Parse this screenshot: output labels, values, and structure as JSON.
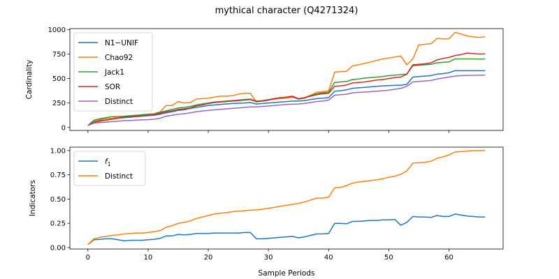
{
  "title": "mythical character (Q4271324)",
  "chart_data": [
    {
      "type": "line",
      "ylabel": "Cardinality",
      "xlabel": "",
      "xlim": [
        -3,
        69
      ],
      "ylim": [
        -30,
        1010
      ],
      "xticks": [
        0,
        10,
        20,
        30,
        40,
        50,
        60
      ],
      "xtick_labels": [
        "",
        "",
        "",
        "",
        "",
        "",
        ""
      ],
      "yticks": [
        0,
        250,
        500,
        750,
        1000
      ],
      "ytick_labels": [
        "0",
        "250",
        "500",
        "750",
        "1000"
      ],
      "legend": "top-left",
      "x": [
        0,
        1,
        2,
        3,
        4,
        5,
        6,
        7,
        8,
        9,
        10,
        11,
        12,
        13,
        14,
        15,
        16,
        17,
        18,
        19,
        20,
        21,
        22,
        23,
        24,
        25,
        26,
        27,
        28,
        29,
        30,
        31,
        32,
        33,
        34,
        35,
        36,
        37,
        38,
        39,
        40,
        41,
        42,
        43,
        44,
        45,
        46,
        47,
        48,
        49,
        50,
        51,
        52,
        53,
        54,
        55,
        56,
        57,
        58,
        59,
        60,
        61,
        62,
        63,
        64,
        65,
        66
      ],
      "series": [
        {
          "name": "N1−UNIF",
          "color": "#1f77b4",
          "values": [
            20,
            60,
            70,
            75,
            85,
            95,
            100,
            105,
            110,
            115,
            120,
            125,
            135,
            150,
            160,
            175,
            180,
            195,
            205,
            215,
            225,
            230,
            235,
            240,
            245,
            248,
            250,
            255,
            240,
            245,
            250,
            255,
            260,
            265,
            270,
            270,
            275,
            285,
            295,
            300,
            305,
            370,
            375,
            385,
            400,
            405,
            410,
            415,
            420,
            425,
            428,
            430,
            432,
            440,
            515,
            520,
            525,
            530,
            545,
            550,
            560,
            580,
            580,
            580,
            580,
            580,
            580
          ]
        },
        {
          "name": "Chao92",
          "color": "#ff7f0e",
          "values": [
            20,
            65,
            80,
            90,
            95,
            105,
            110,
            115,
            120,
            125,
            135,
            140,
            160,
            225,
            225,
            265,
            250,
            255,
            290,
            295,
            300,
            310,
            320,
            320,
            325,
            340,
            350,
            350,
            260,
            270,
            280,
            290,
            295,
            300,
            310,
            290,
            305,
            330,
            360,
            365,
            375,
            565,
            570,
            575,
            630,
            640,
            655,
            670,
            685,
            700,
            710,
            720,
            730,
            640,
            700,
            845,
            850,
            855,
            910,
            905,
            905,
            970,
            955,
            935,
            925,
            920,
            925
          ]
        },
        {
          "name": "Jack1",
          "color": "#2ca02c",
          "values": [
            20,
            75,
            90,
            100,
            110,
            110,
            115,
            120,
            125,
            130,
            135,
            140,
            155,
            170,
            185,
            200,
            205,
            215,
            230,
            240,
            250,
            260,
            265,
            270,
            275,
            280,
            285,
            290,
            270,
            275,
            285,
            295,
            305,
            310,
            315,
            290,
            300,
            325,
            345,
            355,
            360,
            460,
            465,
            470,
            490,
            495,
            505,
            510,
            515,
            520,
            530,
            535,
            540,
            545,
            630,
            635,
            640,
            645,
            660,
            665,
            670,
            700,
            700,
            700,
            700,
            698,
            700
          ]
        },
        {
          "name": "SOR",
          "color": "#d62728",
          "values": [
            20,
            55,
            65,
            75,
            85,
            95,
            105,
            110,
            115,
            120,
            125,
            130,
            145,
            160,
            170,
            185,
            190,
            200,
            220,
            230,
            245,
            255,
            260,
            265,
            270,
            275,
            280,
            285,
            265,
            270,
            280,
            295,
            305,
            310,
            320,
            295,
            305,
            320,
            335,
            345,
            350,
            420,
            425,
            435,
            455,
            460,
            465,
            475,
            485,
            490,
            500,
            510,
            515,
            545,
            640,
            645,
            650,
            660,
            690,
            705,
            715,
            735,
            745,
            760,
            755,
            750,
            752
          ]
        },
        {
          "name": "Distinct",
          "color": "#9467bd",
          "values": [
            20,
            45,
            50,
            55,
            60,
            65,
            70,
            72,
            75,
            78,
            80,
            85,
            95,
            115,
            125,
            135,
            140,
            150,
            160,
            168,
            175,
            180,
            185,
            190,
            195,
            200,
            205,
            210,
            210,
            215,
            220,
            225,
            230,
            235,
            238,
            240,
            245,
            255,
            265,
            270,
            280,
            330,
            335,
            340,
            355,
            358,
            362,
            366,
            370,
            375,
            382,
            390,
            400,
            420,
            465,
            470,
            475,
            480,
            495,
            505,
            515,
            525,
            530,
            532,
            533,
            535,
            535
          ]
        }
      ]
    },
    {
      "type": "line",
      "ylabel": "Indicators",
      "xlabel": "Sample Periods",
      "xlim": [
        -3,
        69
      ],
      "ylim": [
        -0.015,
        1.035
      ],
      "xticks": [
        0,
        10,
        20,
        30,
        40,
        50,
        60
      ],
      "xtick_labels": [
        "0",
        "10",
        "20",
        "30",
        "40",
        "50",
        "60"
      ],
      "yticks": [
        0,
        0.25,
        0.5,
        0.75,
        1.0
      ],
      "ytick_labels": [
        "0.00",
        "0.25",
        "0.50",
        "0.75",
        "1.00"
      ],
      "legend": "top-left",
      "x": [
        0,
        1,
        2,
        3,
        4,
        5,
        6,
        7,
        8,
        9,
        10,
        11,
        12,
        13,
        14,
        15,
        16,
        17,
        18,
        19,
        20,
        21,
        22,
        23,
        24,
        25,
        26,
        27,
        28,
        29,
        30,
        31,
        32,
        33,
        34,
        35,
        36,
        37,
        38,
        39,
        40,
        41,
        42,
        43,
        44,
        45,
        46,
        47,
        48,
        49,
        50,
        51,
        52,
        53,
        54,
        55,
        56,
        57,
        58,
        59,
        60,
        61,
        62,
        63,
        64,
        65,
        66
      ],
      "series": [
        {
          "name": "f1",
          "name_main": "f",
          "name_sub": "1",
          "color": "#1f77b4",
          "values": [
            0.03,
            0.08,
            0.085,
            0.09,
            0.09,
            0.08,
            0.07,
            0.075,
            0.075,
            0.075,
            0.08,
            0.085,
            0.095,
            0.12,
            0.12,
            0.135,
            0.13,
            0.135,
            0.145,
            0.145,
            0.145,
            0.15,
            0.15,
            0.15,
            0.15,
            0.15,
            0.155,
            0.155,
            0.09,
            0.09,
            0.095,
            0.1,
            0.105,
            0.11,
            0.115,
            0.1,
            0.11,
            0.125,
            0.14,
            0.14,
            0.145,
            0.25,
            0.25,
            0.245,
            0.27,
            0.27,
            0.275,
            0.28,
            0.28,
            0.285,
            0.285,
            0.29,
            0.23,
            0.26,
            0.32,
            0.315,
            0.315,
            0.31,
            0.33,
            0.32,
            0.32,
            0.345,
            0.335,
            0.325,
            0.32,
            0.315,
            0.315
          ]
        },
        {
          "name": "Distinct",
          "color": "#ff7f0e",
          "values": [
            0.03,
            0.09,
            0.105,
            0.115,
            0.125,
            0.13,
            0.14,
            0.145,
            0.15,
            0.15,
            0.155,
            0.165,
            0.175,
            0.21,
            0.225,
            0.25,
            0.26,
            0.275,
            0.3,
            0.315,
            0.33,
            0.345,
            0.355,
            0.36,
            0.37,
            0.375,
            0.38,
            0.385,
            0.39,
            0.395,
            0.405,
            0.415,
            0.425,
            0.435,
            0.445,
            0.455,
            0.47,
            0.49,
            0.51,
            0.51,
            0.52,
            0.615,
            0.62,
            0.64,
            0.665,
            0.675,
            0.685,
            0.69,
            0.7,
            0.71,
            0.725,
            0.735,
            0.755,
            0.79,
            0.87,
            0.875,
            0.88,
            0.89,
            0.92,
            0.935,
            0.955,
            0.985,
            0.99,
            0.995,
            1.0,
            1.0,
            1.0
          ]
        }
      ]
    }
  ]
}
